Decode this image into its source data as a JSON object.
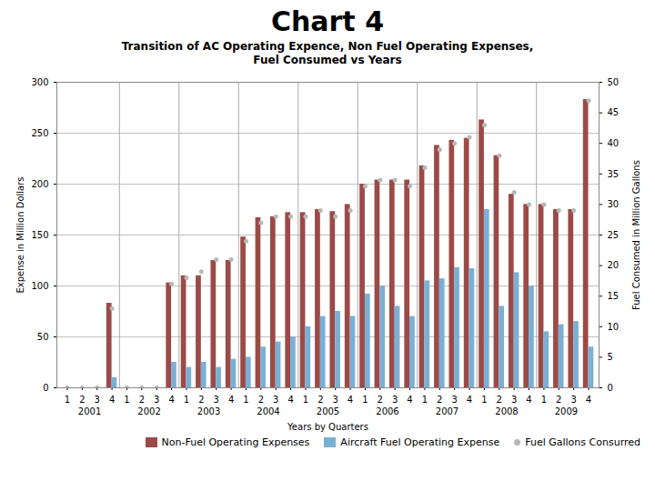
{
  "chart_data": {
    "type": "bar",
    "title": "Chart 4",
    "subtitle": "Transition of AC Operating Expence, Non Fuel Operating Expenses,\nFuel Consumed vs Years",
    "xlabel": "Years by Quarters",
    "ylabel": "Expense in Million Dollars",
    "y2label": "Fuel Consumed in Million Gallons",
    "categories": [
      "1",
      "2",
      "3",
      "4",
      "1",
      "2",
      "3",
      "4",
      "1",
      "2",
      "3",
      "4",
      "1",
      "2",
      "3",
      "4",
      "1",
      "2",
      "3",
      "4",
      "1",
      "2",
      "3",
      "4",
      "1",
      "2",
      "3",
      "4",
      "1",
      "2",
      "3",
      "4",
      "1",
      "2",
      "3",
      "4"
    ],
    "groups": [
      "2001",
      "2001",
      "2001",
      "2001",
      "2002",
      "2002",
      "2002",
      "2002",
      "2003",
      "2003",
      "2003",
      "2003",
      "2004",
      "2004",
      "2004",
      "2004",
      "2005",
      "2005",
      "2005",
      "2005",
      "2006",
      "2006",
      "2006",
      "2006",
      "2007",
      "2007",
      "2007",
      "2007",
      "2008",
      "2008",
      "2008",
      "2008",
      "2009",
      "2009",
      "2009",
      "2009"
    ],
    "series": [
      {
        "name": "Non-Fuel Operating Expenses",
        "color": "#9b4a47",
        "values": [
          0,
          0,
          0,
          83,
          0,
          0,
          0,
          103,
          110,
          110,
          125,
          125,
          148,
          167,
          168,
          172,
          172,
          175,
          173,
          180,
          200,
          204,
          204,
          204,
          218,
          238,
          243,
          245,
          263,
          228,
          190,
          180,
          180,
          175,
          175,
          283
        ]
      },
      {
        "name": "Aircraft Fuel Operating Expense",
        "color": "#7bafd4",
        "values": [
          0,
          0,
          0,
          10,
          0,
          0,
          0,
          25,
          20,
          25,
          20,
          28,
          30,
          40,
          45,
          50,
          60,
          70,
          75,
          70,
          92,
          100,
          80,
          70,
          105,
          107,
          118,
          117,
          175,
          80,
          113,
          100,
          55,
          62,
          65,
          40
        ]
      },
      {
        "name": "Fuel Gallons Consurred",
        "type": "scatter",
        "marker": "dot",
        "axis": "y2",
        "color": "#b8b8b8",
        "values": [
          0,
          0,
          0,
          13,
          0,
          0,
          0,
          17,
          18,
          19,
          21,
          21,
          24,
          27,
          28,
          28,
          28,
          29,
          28,
          29,
          33,
          34,
          34,
          33,
          36,
          39,
          40,
          41,
          43,
          38,
          32,
          30,
          30,
          29,
          29,
          47
        ]
      }
    ],
    "ylim": [
      0,
      300
    ],
    "yticks": [
      0,
      50,
      100,
      150,
      200,
      250,
      300
    ],
    "y2lim": [
      0,
      50
    ],
    "y2ticks": [
      0,
      5,
      10,
      15,
      20,
      25,
      30,
      35,
      40,
      45,
      50
    ],
    "grid": true,
    "legend": "bottom right"
  }
}
